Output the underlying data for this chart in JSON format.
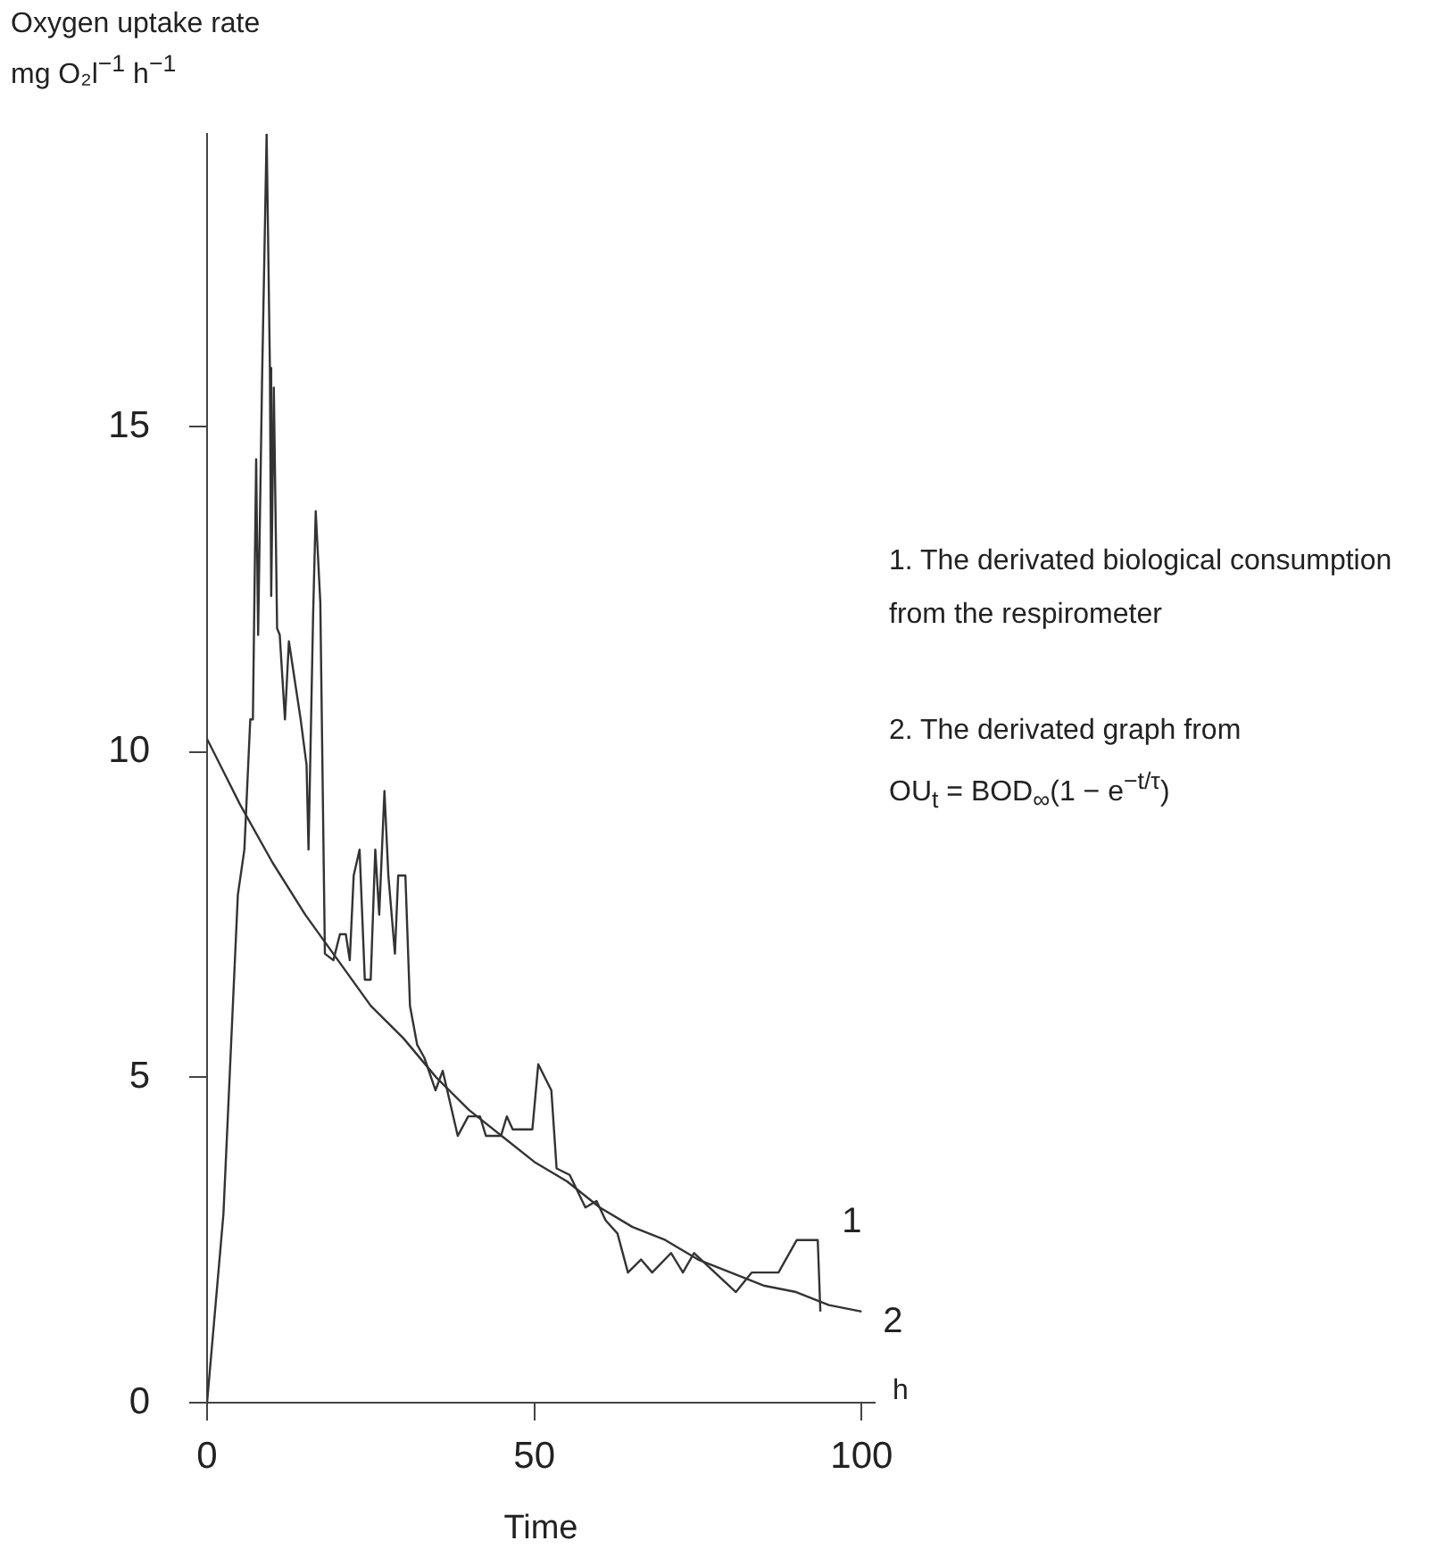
{
  "chart_data": {
    "type": "line",
    "xlabel": "Time",
    "ylabel": "Oxygen uptake rate\nmg O₂l$^{−1}$ h$^{−1}$",
    "annotations": [
      "h",
      "1. The derivated biological consumption\nfrom the respirometer",
      "2. The derivated graph from\nOU$_{t}$ = BOD$_{∞}$(1 − e$^{−t/τ}$)"
    ],
    "xlim": [
      0,
      102
    ],
    "xticks": [
      0,
      50,
      100
    ],
    "ylim": [
      0,
      19.5
    ],
    "yticks": [
      0,
      5,
      10,
      15
    ],
    "grid": false,
    "legend": false,
    "marker": "none",
    "line_style": "solid",
    "series": [
      {
        "name": "1",
        "color": "#333333",
        "x": [
          0,
          2.5,
          4.7,
          5.7,
          6.6,
          7.0,
          7.5,
          7.8,
          8.4,
          9.1,
          9.6,
          9.8,
          10.2,
          10.7,
          11.1,
          11.9,
          12.5,
          14.3,
          15.2,
          15.5,
          16.2,
          16.6,
          17.3,
          18.0,
          19.3,
          20.3,
          21.2,
          21.8,
          22.4,
          23.3,
          24.1,
          25.0,
          25.7,
          26.3,
          27.1,
          27.7,
          28.7,
          29.2,
          30.3,
          31.0,
          32.1,
          33.2,
          34.9,
          36.0,
          38.3,
          39.9,
          41.7,
          42.6,
          44.9,
          45.8,
          46.7,
          49.7,
          50.6,
          52.6,
          53.4,
          55.4,
          57.8,
          59.5,
          60.9,
          62.7,
          64.3,
          66.3,
          68.0,
          70.9,
          72.7,
          74.4,
          80.8,
          83.2,
          87.3,
          90.1,
          93.3,
          93.7
        ],
        "values": [
          0,
          2.9,
          7.8,
          8.5,
          10.5,
          10.5,
          14.5,
          11.8,
          15.7,
          19.5,
          15.9,
          12.4,
          15.6,
          11.9,
          11.8,
          10.5,
          11.7,
          10.5,
          9.8,
          8.5,
          12.1,
          13.7,
          12.3,
          6.9,
          6.8,
          7.2,
          7.2,
          6.8,
          8.1,
          8.5,
          6.5,
          6.5,
          8.5,
          7.5,
          9.4,
          8.1,
          6.9,
          8.1,
          8.1,
          6.1,
          5.5,
          5.3,
          4.8,
          5.1,
          4.1,
          4.4,
          4.4,
          4.1,
          4.1,
          4.4,
          4.2,
          4.2,
          5.2,
          4.8,
          3.6,
          3.5,
          3.0,
          3.1,
          2.8,
          2.6,
          2.0,
          2.2,
          2.0,
          2.3,
          2.0,
          2.3,
          1.7,
          2.0,
          2.0,
          2.5,
          2.5,
          1.4
        ]
      },
      {
        "name": "2",
        "color": "#333333",
        "x": [
          0,
          5,
          10,
          15,
          20,
          25,
          30,
          35,
          40,
          45,
          50,
          55,
          60,
          65,
          70,
          75,
          80,
          85,
          90,
          95,
          100
        ],
        "values": [
          10.2,
          9.2,
          8.3,
          7.5,
          6.8,
          6.1,
          5.6,
          5.0,
          4.5,
          4.1,
          3.7,
          3.4,
          3.0,
          2.7,
          2.5,
          2.2,
          2.0,
          1.8,
          1.7,
          1.5,
          1.4
        ]
      }
    ]
  }
}
